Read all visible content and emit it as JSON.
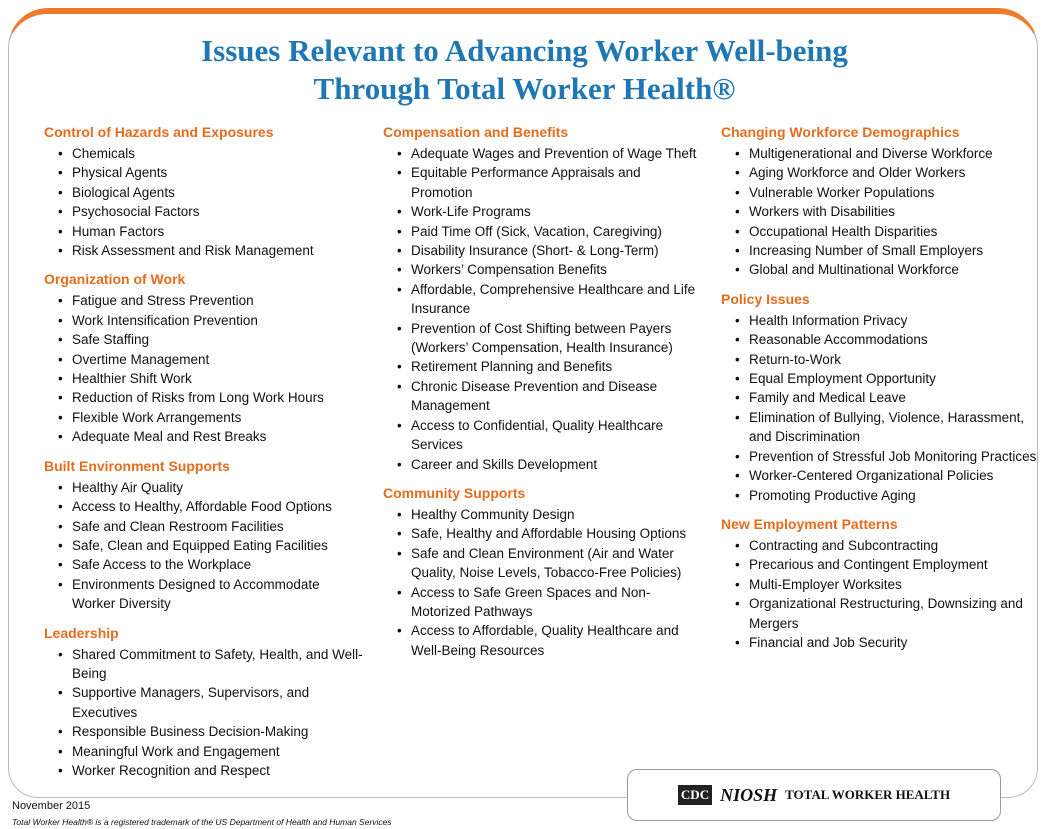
{
  "header": {
    "title_lines": [
      "Issues Relevant to Advancing Worker Well-being",
      "Through Total Worker Health®"
    ]
  },
  "columns": [
    {
      "sections": [
        {
          "heading": "Control of Hazards and Exposures",
          "items": [
            "Chemicals",
            "Physical Agents",
            "Biological Agents",
            "Psychosocial Factors",
            "Human Factors",
            "Risk Assessment and Risk Management"
          ]
        },
        {
          "heading": "Organization of Work",
          "items": [
            "Fatigue and Stress Prevention",
            "Work Intensification Prevention",
            "Safe Staffing",
            "Overtime Management",
            "Healthier Shift Work",
            "Reduction of Risks from Long Work Hours",
            "Flexible Work Arrangements",
            "Adequate Meal and Rest Breaks"
          ]
        },
        {
          "heading": "Built Environment Supports",
          "items": [
            "Healthy Air Quality",
            "Access to Healthy, Affordable Food Options",
            "Safe and Clean Restroom Facilities",
            "Safe, Clean and Equipped Eating Facilities",
            "Safe Access to the Workplace",
            "Environments Designed to Accommodate Worker Diversity"
          ]
        },
        {
          "heading": "Leadership",
          "items": [
            "Shared Commitment to Safety, Health, and Well-Being",
            "Supportive Managers, Supervisors, and Executives",
            "Responsible Business Decision-Making",
            "Meaningful Work and Engagement",
            "Worker Recognition and Respect"
          ]
        }
      ]
    },
    {
      "sections": [
        {
          "heading": "Compensation and Benefits",
          "items": [
            "Adequate Wages and Prevention of Wage Theft",
            "Equitable Performance Appraisals and Promotion",
            "Work-Life Programs",
            "Paid Time Off (Sick, Vacation, Caregiving)",
            "Disability Insurance (Short- & Long-Term)",
            "Workers’ Compensation Benefits",
            "Affordable, Comprehensive Healthcare and Life Insurance",
            "Prevention of Cost Shifting between Payers (Workers’ Compensation, Health Insurance)",
            "Retirement Planning and Benefits",
            "Chronic Disease Prevention and Disease Management",
            "Access to Confidential, Quality Healthcare Services",
            "Career and Skills Development"
          ]
        },
        {
          "heading": "Community Supports",
          "items": [
            "Healthy Community Design",
            "Safe, Healthy and Affordable Housing Options",
            "Safe and Clean Environment (Air and Water Quality, Noise Levels, Tobacco-Free Policies)",
            "Access to Safe Green Spaces and Non-Motorized Pathways",
            "Access to Affordable, Quality Healthcare and Well-Being Resources"
          ]
        }
      ]
    },
    {
      "sections": [
        {
          "heading": "Changing Workforce Demographics",
          "items": [
            "Multigenerational and Diverse Workforce",
            "Aging Workforce and Older Workers",
            "Vulnerable Worker Populations",
            "Workers with Disabilities",
            "Occupational Health Disparities",
            "Increasing Number of Small Employers",
            "Global and Multinational Workforce"
          ]
        },
        {
          "heading": "Policy Issues",
          "items": [
            "Health Information Privacy",
            "Reasonable Accommodations",
            "Return-to-Work",
            "Equal Employment Opportunity",
            "Family and Medical Leave",
            "Elimination of Bullying, Violence, Harassment, and Discrimination",
            "Prevention of Stressful Job Monitoring Practices",
            "Worker-Centered Organizational Policies",
            "Promoting Productive Aging"
          ]
        },
        {
          "heading": "New Employment Patterns",
          "items": [
            "Contracting and Subcontracting",
            "Precarious and Contingent Employment",
            "Multi-Employer Worksites",
            "Organizational Restructuring, Downsizing and Mergers",
            "Financial and Job Security"
          ]
        }
      ]
    }
  ],
  "footer": {
    "date": "November 2015",
    "trademark": "Total Worker Health® is a registered trademark of the US Department of Health and Human Services"
  },
  "logo": {
    "cdc": "CDC",
    "niosh": "NIOSH",
    "program": "TOTAL WORKER HEALTH"
  }
}
